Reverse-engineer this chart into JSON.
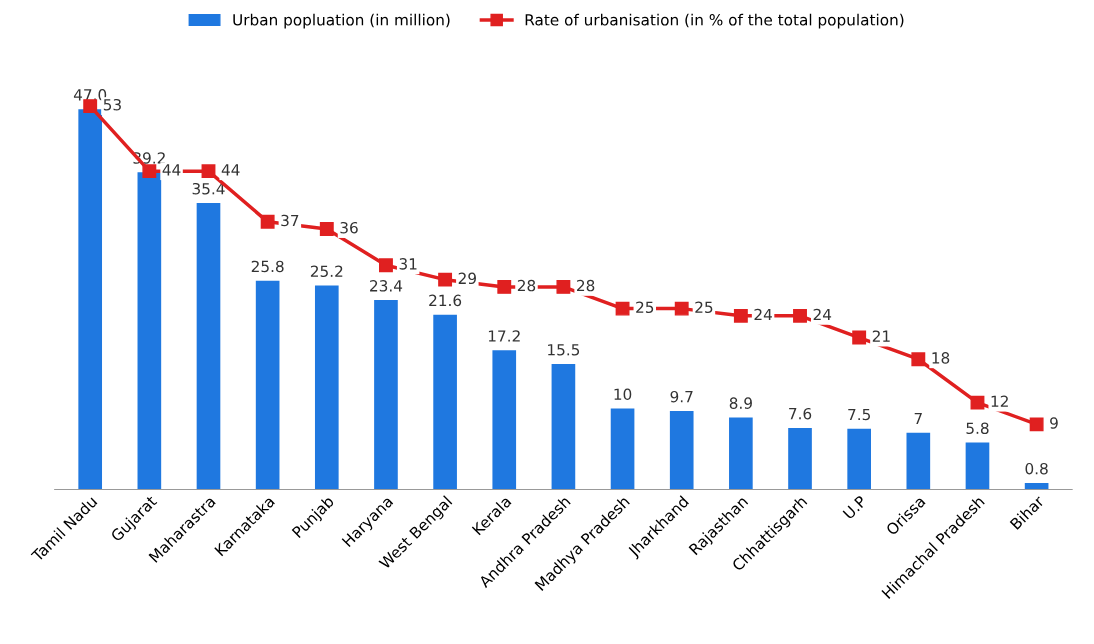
{
  "chart_data": {
    "type": "bar",
    "categories": [
      "Tamil Nadu",
      "Gujarat",
      "Maharastra",
      "Karnataka",
      "Punjab",
      "Haryana",
      "West Bengal",
      "Kerala",
      "Andhra Pradesh",
      "Madhya Pradesh",
      "Jharkhand",
      "Rajasthan",
      "Chhattisgarh",
      "U.P",
      "Orissa",
      "Himachal Pradesh",
      "Bihar"
    ],
    "series": [
      {
        "name": "Urban popluation (in million)",
        "color": "#1f78e0",
        "values": [
          47.0,
          39.2,
          35.4,
          25.8,
          25.2,
          23.4,
          21.6,
          17.2,
          15.5,
          10,
          9.7,
          8.9,
          7.6,
          7.5,
          7,
          5.8,
          0.8
        ],
        "value_labels": [
          "47.0",
          "39.2",
          "35.4",
          "25.8",
          "25.2",
          "23.4",
          "21.6",
          "17.2",
          "15.5",
          "10",
          "9.7",
          "8.9",
          "7.6",
          "7.5",
          "7",
          "5.8",
          "0.8"
        ]
      },
      {
        "name": "Rate of urbanisation (in % of the total population)",
        "type": "line",
        "axis": "y2",
        "color": "#e02020",
        "values": [
          53,
          44,
          44,
          37,
          36,
          31,
          29,
          28,
          28,
          25,
          25,
          24,
          24,
          21,
          18,
          12,
          9
        ]
      }
    ],
    "tick_labels": "x",
    "data_labels": true,
    "legend": "top",
    "marker": "square",
    "line_style": "solid",
    "grid": false
  }
}
